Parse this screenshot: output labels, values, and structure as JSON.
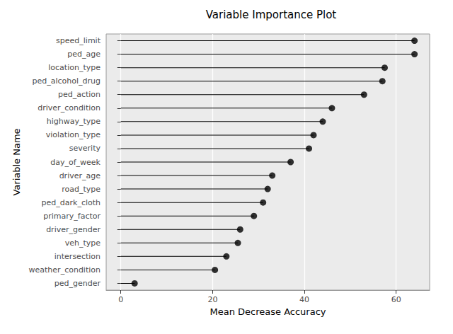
{
  "chart_data": {
    "type": "lollipop",
    "title": "Variable Importance Plot",
    "x_label": "Mean Decrease Accuracy",
    "y_label": "Variable Name",
    "orientation": "horizontal",
    "categories": [
      "speed_limit",
      "ped_age",
      "location_type",
      "ped_alcohol_drug",
      "ped_action",
      "driver_condition",
      "highway_type",
      "violation_type",
      "severity",
      "day_of_week",
      "driver_age",
      "road_type",
      "ped_dark_cloth",
      "primary_factor",
      "driver_gender",
      "veh_type",
      "intersection",
      "weather_condition",
      "ped_gender"
    ],
    "values": [
      64,
      64,
      57.5,
      57,
      53,
      46,
      44,
      42,
      41,
      37,
      33,
      32,
      31,
      29,
      26,
      25.5,
      23,
      20.5,
      3
    ],
    "color": "#000000",
    "xlim": [
      -3.2,
      67.3
    ],
    "xticks": [
      0,
      20,
      40,
      60
    ],
    "grid": true
  }
}
